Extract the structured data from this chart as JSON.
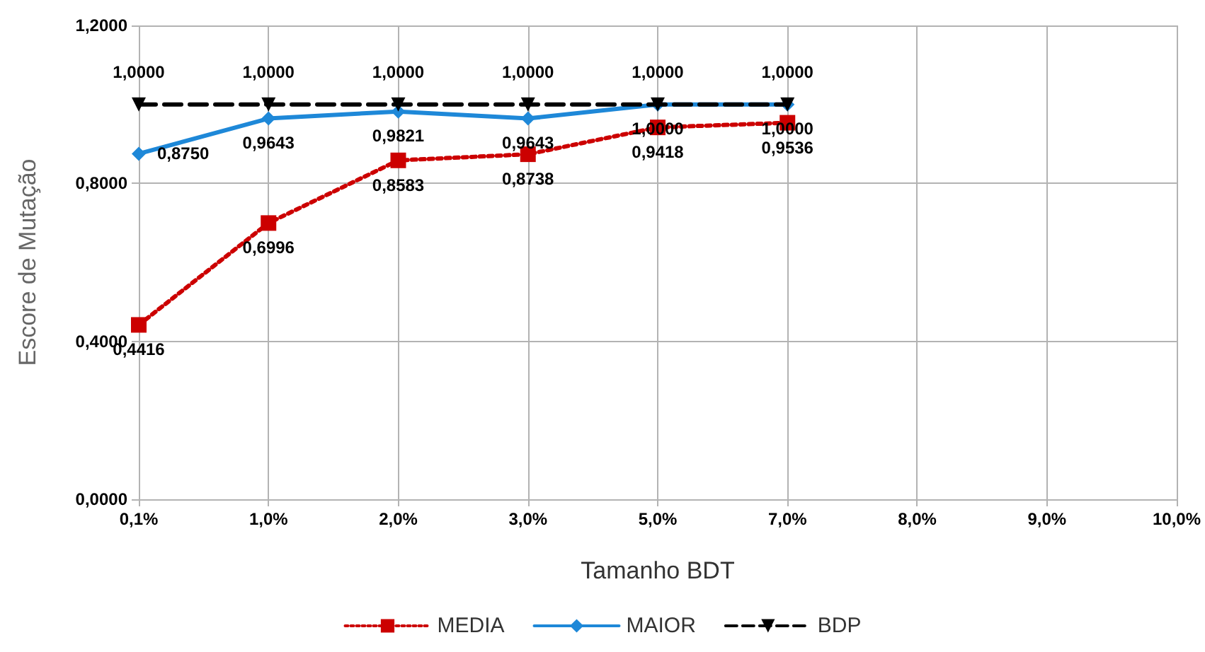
{
  "chart_data": {
    "type": "line",
    "xlabel": "Tamanho BDT",
    "ylabel": "Escore de Mutação",
    "categories": [
      "0,1%",
      "1,0%",
      "2,0%",
      "3,0%",
      "5,0%",
      "7,0%",
      "8,0%",
      "9,0%",
      "10,0%"
    ],
    "ylim": [
      0,
      1.2
    ],
    "yticks": [
      {
        "value": 0,
        "label": "0,0000"
      },
      {
        "value": 0.4,
        "label": "0,4000"
      },
      {
        "value": 0.8,
        "label": "0,8000"
      },
      {
        "value": 1.2,
        "label": "1,2000"
      }
    ],
    "series": [
      {
        "name": "MEDIA",
        "color": "#cc0000",
        "marker": "square",
        "line_style": "dotted",
        "values": [
          0.4416,
          0.6996,
          0.8583,
          0.8738,
          0.9418,
          0.9536,
          null,
          null,
          null
        ],
        "value_labels": [
          "0,4416",
          "0,6996",
          "0,8583",
          "0,8738",
          "0,9418",
          "0,9536",
          null,
          null,
          null
        ]
      },
      {
        "name": "MAIOR",
        "color": "#1e88d8",
        "marker": "diamond",
        "line_style": "solid",
        "values": [
          0.875,
          0.9643,
          0.9821,
          0.9643,
          1,
          1,
          null,
          null,
          null
        ],
        "value_labels": [
          "0,8750",
          "0,9643",
          "0,9821",
          "0,9643",
          "1,0000",
          "1,0000",
          null,
          null,
          null
        ]
      },
      {
        "name": "BDP",
        "color": "#000000",
        "marker": "triangle",
        "line_style": "dashed",
        "values": [
          1,
          1,
          1,
          1,
          1,
          1,
          null,
          null,
          null
        ],
        "value_labels": [
          "1,0000",
          "1,0000",
          "1,0000",
          "1,0000",
          "1,0000",
          "1,0000",
          null,
          null,
          null
        ]
      }
    ],
    "grid": true,
    "legend": "bottom"
  }
}
